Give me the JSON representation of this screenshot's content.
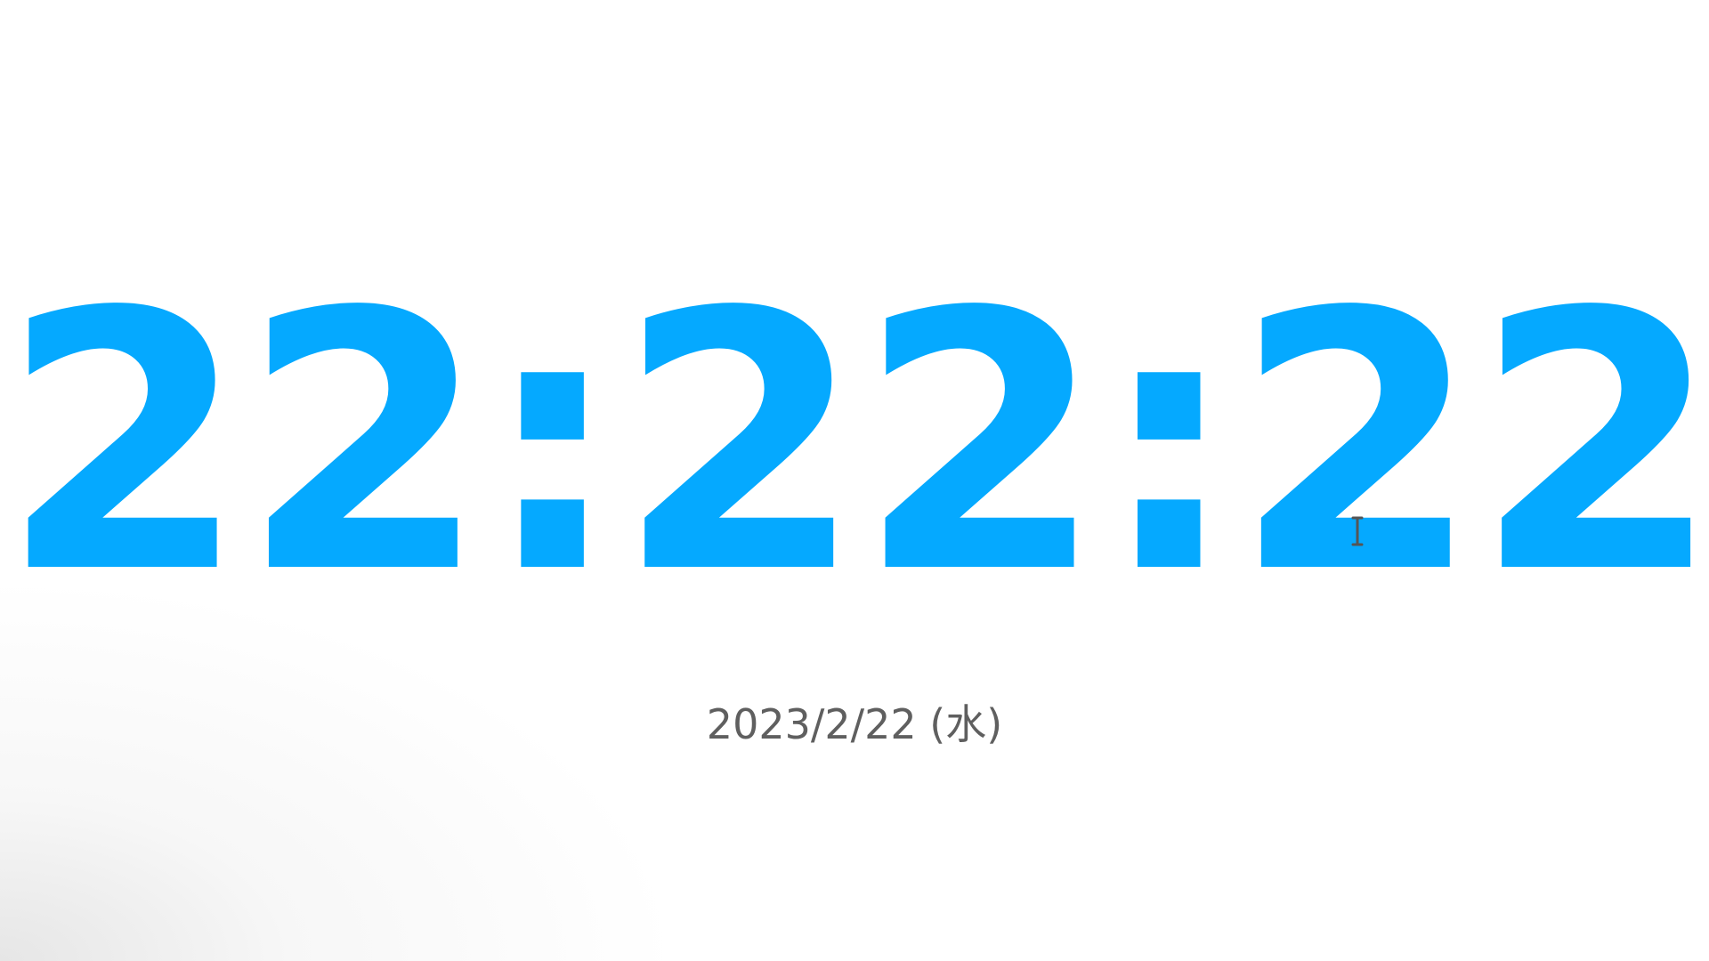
{
  "clock": {
    "time": "22:22:22",
    "date": "2023/2/22 (水)"
  },
  "colors": {
    "time_text": "#05a9ff",
    "date_text": "#5f5f5f",
    "cursor": "#555555"
  },
  "icons": {
    "cursor": "text-cursor-icon"
  }
}
